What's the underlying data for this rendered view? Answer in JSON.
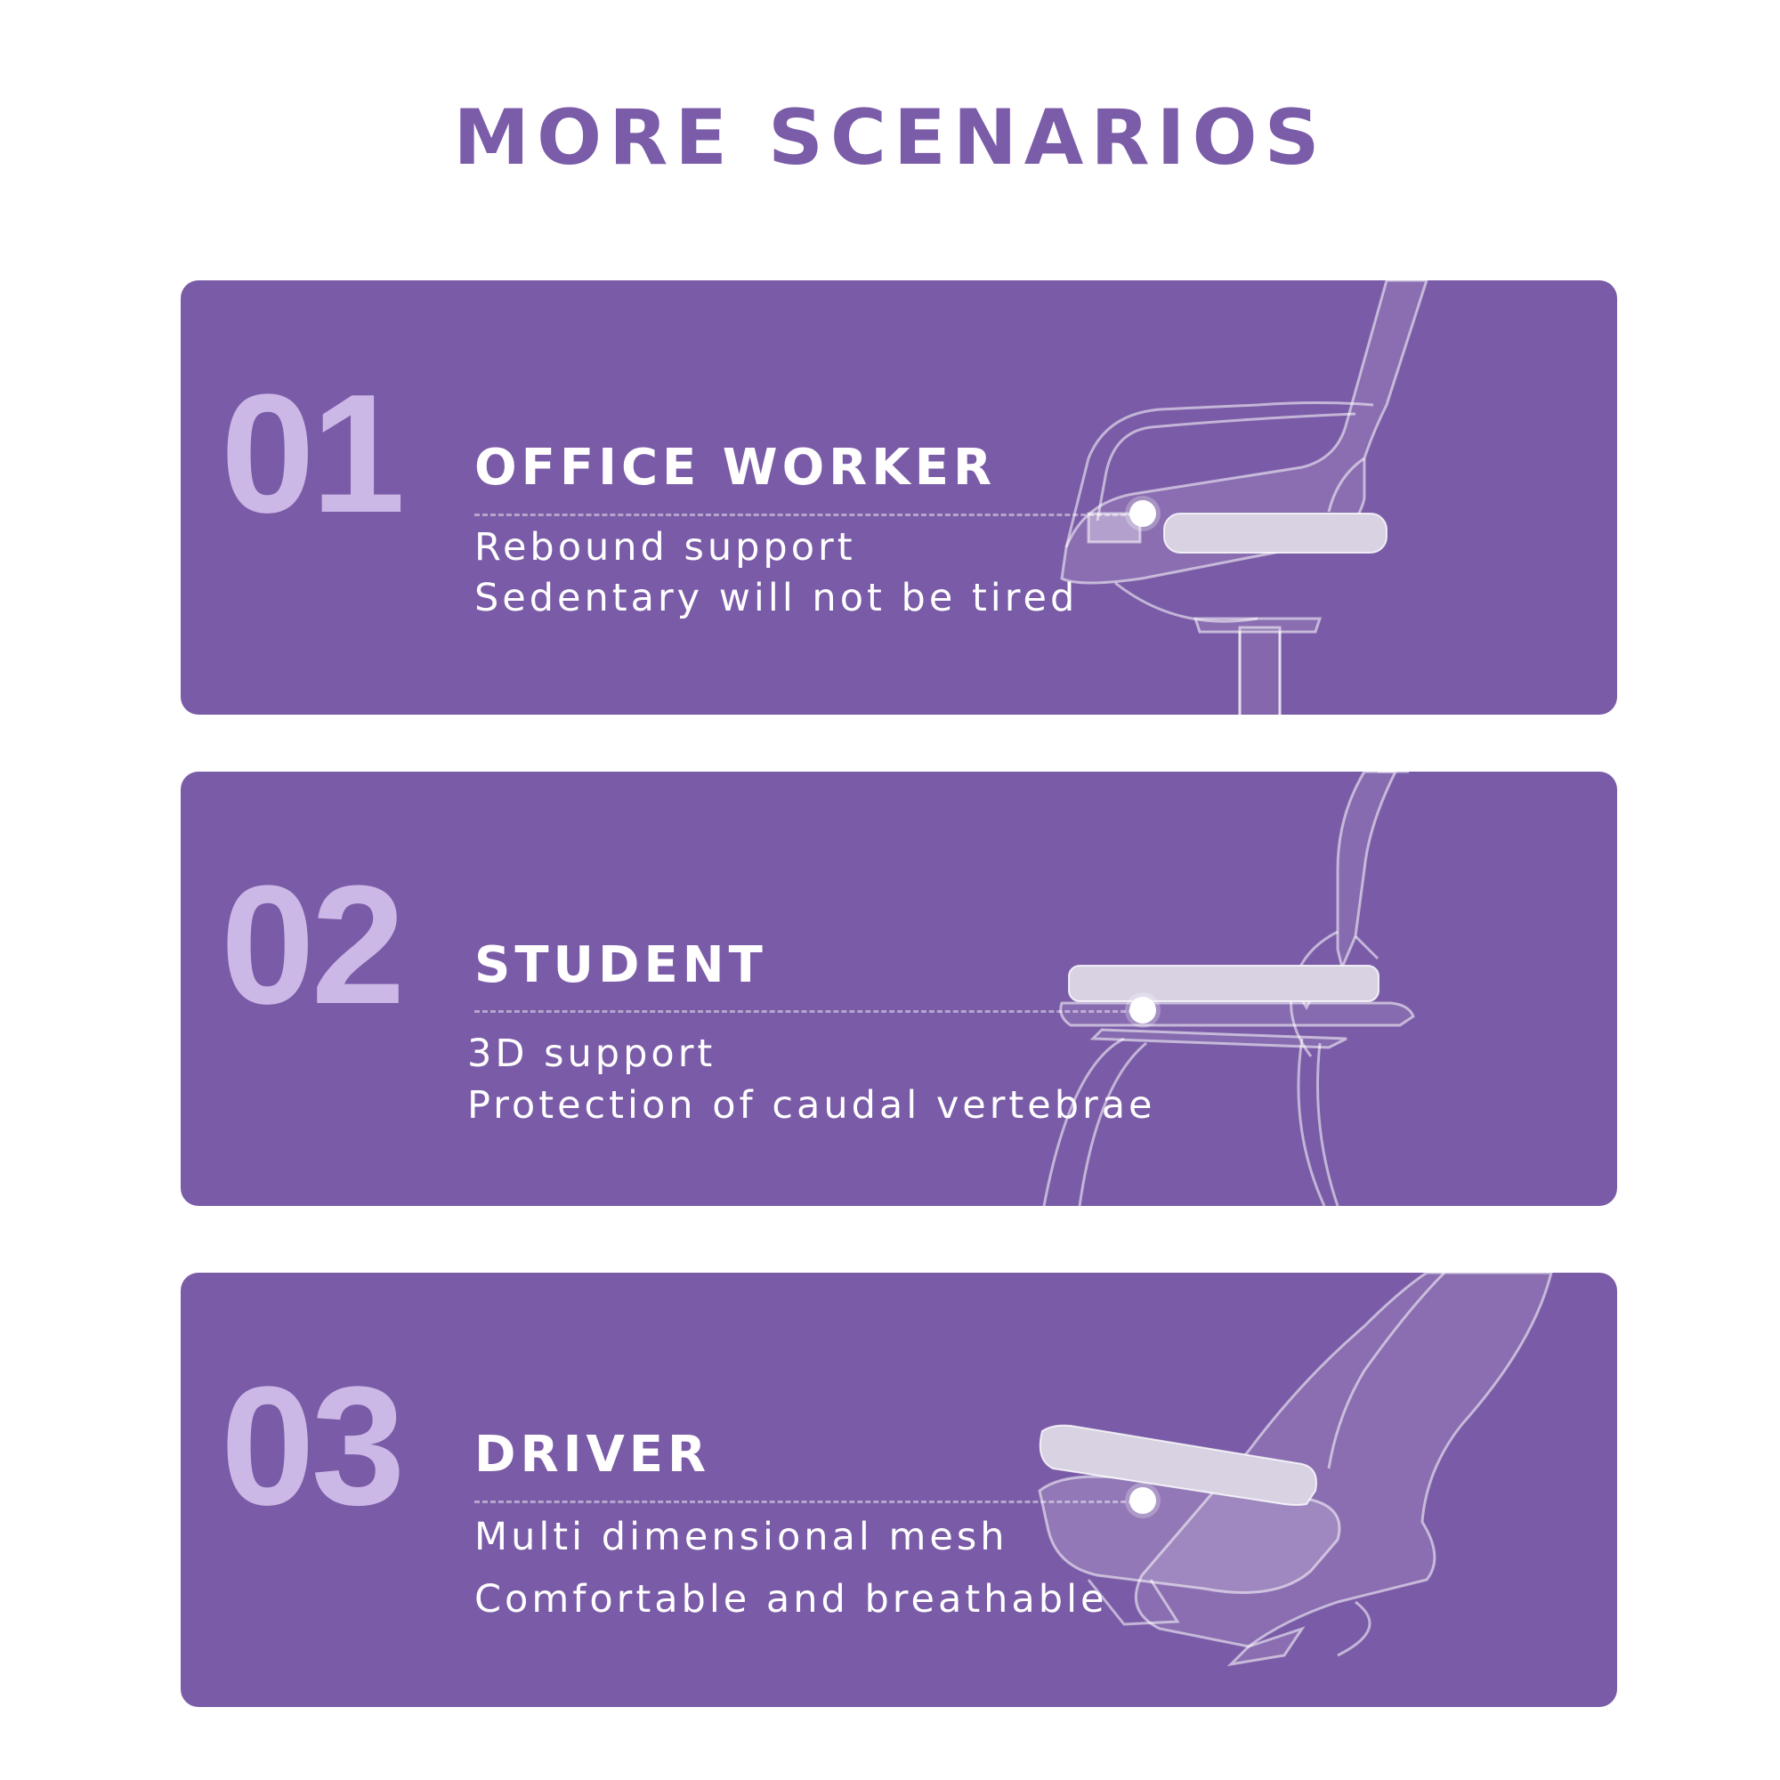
{
  "page": {
    "title": "MORE SCENARIOS"
  },
  "scenarios": [
    {
      "number": "01",
      "heading": "OFFICE WORKER",
      "lines": [
        "Rebound support",
        "Sedentary will not be tired"
      ],
      "illustration_icon": "office-chair-icon"
    },
    {
      "number": "02",
      "heading": "STUDENT",
      "lines": [
        "3D support",
        "Protection of caudal vertebrae"
      ],
      "illustration_icon": "student-chair-icon"
    },
    {
      "number": "03",
      "heading": "DRIVER",
      "lines": [
        "Multi dimensional mesh",
        "Comfortable and breathable"
      ],
      "illustration_icon": "car-seat-icon"
    }
  ],
  "colors": {
    "title": "#7b5ca8",
    "card_background": "#7a5ba7",
    "number": "#ccb8e6",
    "text": "#ffffff"
  }
}
